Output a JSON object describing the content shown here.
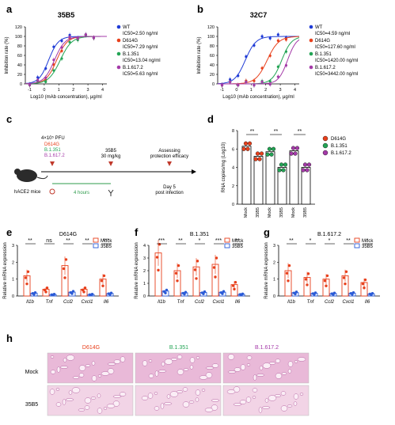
{
  "panel_letters": [
    "a",
    "b",
    "c",
    "d",
    "e",
    "f",
    "g",
    "h"
  ],
  "colors": {
    "wt": "#1f3bd6",
    "d614g": "#e8401c",
    "b1351": "#23a455",
    "b16172": "#a43aa8",
    "mock": "#e8401c",
    "mab": "#2a5bd7"
  },
  "panel_a": {
    "title": "35B5",
    "ylabel": "Inhibition rate (%)",
    "xlabel": "Log10 (mAb concentration), μg/ml",
    "yticks": [
      "0",
      "20",
      "40",
      "60",
      "80",
      "100",
      "120"
    ],
    "xticks": [
      "-1",
      "0",
      "1",
      "2",
      "3",
      "4"
    ],
    "legend": [
      {
        "name": "WT",
        "ic": "IC50=2.50 ng/ml"
      },
      {
        "name": "D614G",
        "ic": "IC50=7.29 ng/ml"
      },
      {
        "name": "B.1.351",
        "ic": "IC50=13.04 ng/ml"
      },
      {
        "name": "B.1.617.2",
        "ic": "IC50=5.63 ng/ml"
      }
    ]
  },
  "panel_b": {
    "title": "32C7",
    "ylabel": "Inhibition rate (%)",
    "xlabel": "Log10 (mAb concentration), μg/ml",
    "yticks": [
      "0",
      "20",
      "40",
      "60",
      "80",
      "100",
      "120"
    ],
    "xticks": [
      "-1",
      "0",
      "1",
      "2",
      "3",
      "4"
    ],
    "legend": [
      {
        "name": "WT",
        "ic": "IC50=4.59 ng/ml"
      },
      {
        "name": "D614G",
        "ic": "IC50=127.60 ng/ml"
      },
      {
        "name": "B.1.351",
        "ic": "IC50=1420.00 ng/ml"
      },
      {
        "name": "B.1.617.2",
        "ic": "IC50=3442.00 ng/ml"
      }
    ]
  },
  "panel_c": {
    "dose": "4×10⁵ PFU",
    "variants": [
      "D614G",
      "B.1.351",
      "B.1.617.2"
    ],
    "drug": "35B5",
    "drug_dose": "30 mg/kg",
    "assess": "Assessing",
    "assess2": "protection efficacy",
    "mice": "hACE2 mice",
    "hours": "4 hours",
    "day": "Day 5",
    "post": "post infection"
  },
  "panel_d": {
    "ylabel": "RNA copies/mg (Log10)",
    "yticks": [
      "0",
      "2",
      "4",
      "6",
      "8"
    ],
    "xlabels": [
      "Mock",
      "35B5",
      "Mock",
      "35B5",
      "Mock",
      "35B5"
    ],
    "sig": "**",
    "legend": [
      "D614G",
      "B.1.351",
      "B.1.617.2"
    ]
  },
  "panel_e": {
    "title": "D614G",
    "ylabel": "Relative mRNA expression",
    "yticks": [
      "0",
      "1",
      "2",
      "3"
    ],
    "genes": [
      "Il1b",
      "Tnf",
      "Ccl2",
      "Cxcl1",
      "Il6"
    ],
    "sig": [
      "**",
      "ns",
      "**",
      "**",
      "***"
    ],
    "legend": [
      "Mock",
      "35B5"
    ]
  },
  "panel_f": {
    "title": "B.1.351",
    "ylabel": "Relative mRNA expression",
    "yticks": [
      "0",
      "1",
      "2",
      "3",
      "4"
    ],
    "genes": [
      "Il1b",
      "Tnf",
      "Ccl2",
      "Cxcl1",
      "Il6"
    ],
    "sig": [
      "***",
      "**",
      "*",
      "***",
      "**"
    ],
    "legend": [
      "Mock",
      "35B5"
    ]
  },
  "panel_g": {
    "title": "B.1.617.2",
    "ylabel": "Relative mRNA expression",
    "yticks": [
      "0",
      "1",
      "2",
      "3"
    ],
    "genes": [
      "Il1b",
      "Tnf",
      "Ccl2",
      "Cxcl1",
      "Il6"
    ],
    "sig": [
      "**",
      "*",
      "*",
      "**",
      "*"
    ],
    "legend": [
      "Mock",
      "35B5"
    ]
  },
  "panel_h": {
    "cols": [
      "D614G",
      "B.1.351",
      "B.1.617.2"
    ],
    "rows": [
      "Mock",
      "35B5"
    ]
  }
}
